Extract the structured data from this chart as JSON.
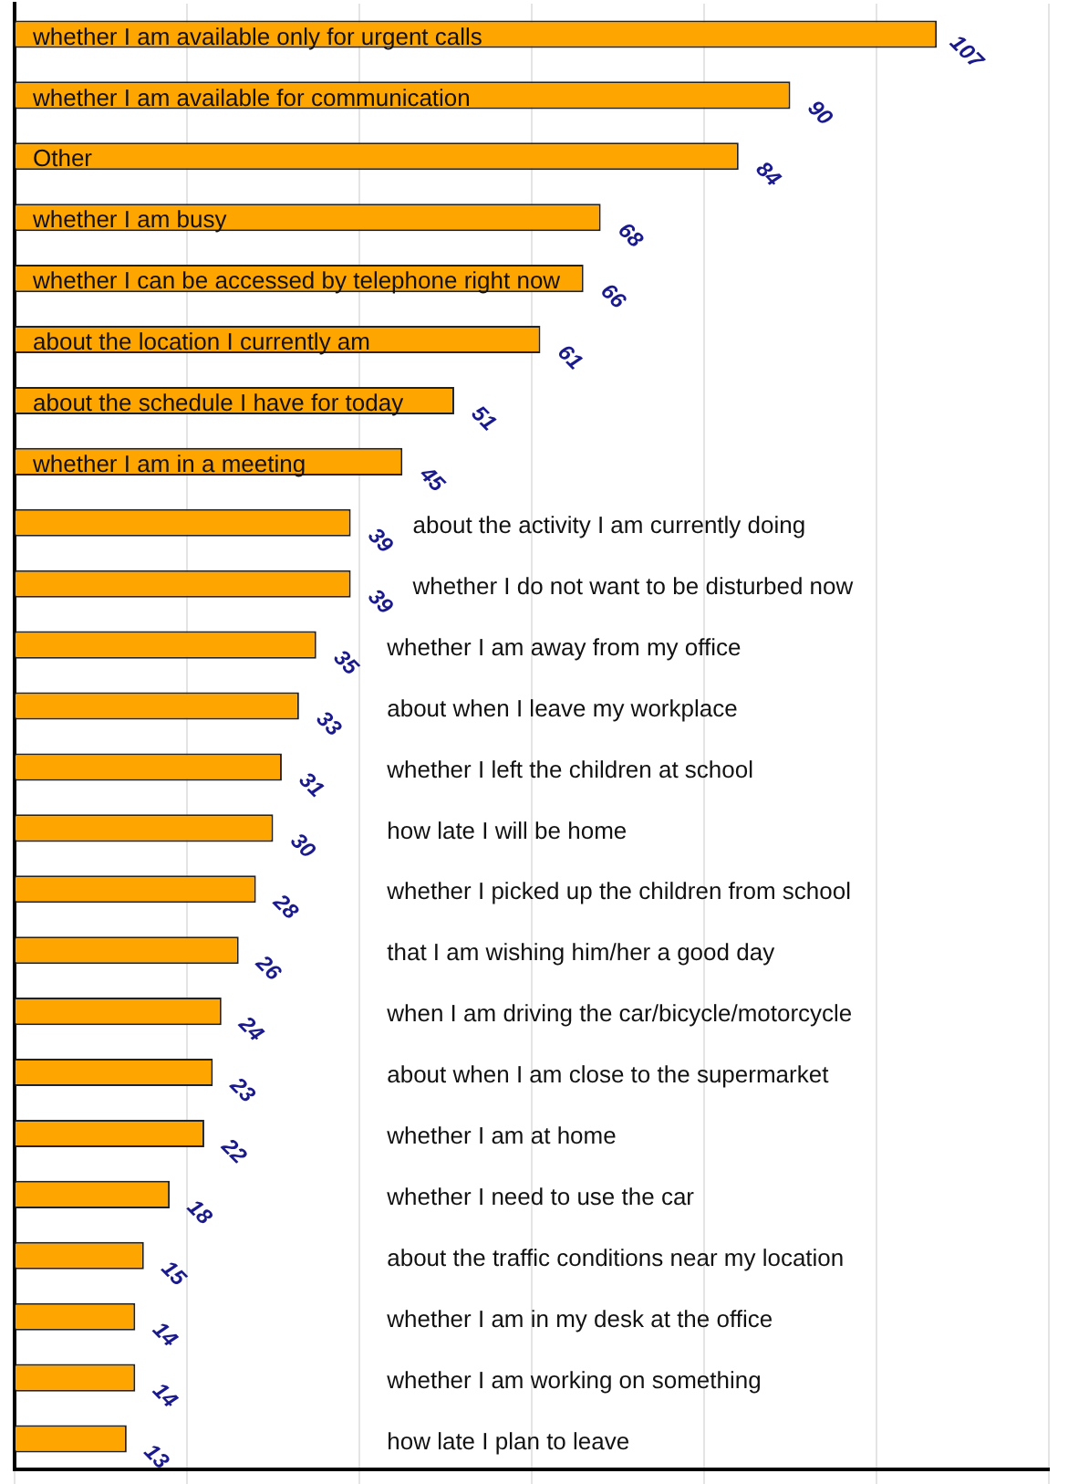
{
  "chart_data": {
    "type": "bar",
    "orientation": "horizontal",
    "categories": [
      "whether I am available only for urgent calls",
      "whether I am available for communication",
      "Other",
      "whether I am busy",
      "whether I can be accessed by telephone right now",
      "about the location I currently am",
      "about the schedule I have for today",
      "whether I am in a meeting",
      "about the activity I am currently doing",
      "whether I do not want to be disturbed now",
      "whether I am away from my office",
      "about when I leave my workplace",
      "whether I left the children at school",
      "how late I will be home",
      "whether I picked up the children from school",
      "that I am wishing him/her a good day",
      "when I am driving the car/bicycle/motorcycle",
      "about when I am close to the supermarket",
      "whether I am at home",
      "whether I need to use the car",
      "about the traffic conditions near my location",
      "whether I am in my desk at the office",
      "whether I am working on something",
      "how late I plan to leave"
    ],
    "values": [
      107,
      90,
      84,
      68,
      66,
      61,
      51,
      45,
      39,
      39,
      35,
      33,
      31,
      30,
      28,
      26,
      24,
      23,
      22,
      18,
      15,
      14,
      14,
      13
    ],
    "color": "#ffa500",
    "data_labels": true,
    "grid": "x",
    "tick_labels": "y",
    "legend": false
  }
}
